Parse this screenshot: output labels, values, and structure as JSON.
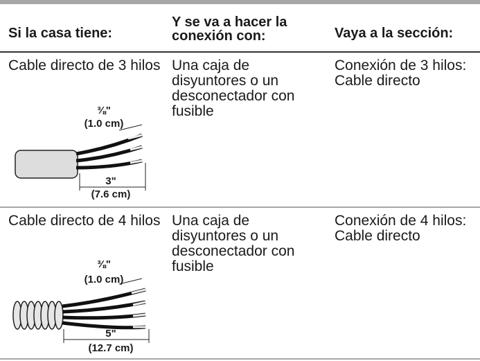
{
  "table": {
    "headers": [
      "Si la casa tiene:",
      "Y se va a hacer la conexión con:",
      "Vaya a la sección:"
    ],
    "rows": [
      {
        "cells": [
          "Cable directo de 3 hilos",
          "Una caja de disyuntores o un desconectador con fusible",
          "Conexión de 3 hilos: Cable directo"
        ],
        "diagram": {
          "strip_length": "⅜\"",
          "strip_metric": "(1.0 cm)",
          "length": "3\"",
          "length_metric": "(7.6 cm)"
        }
      },
      {
        "cells": [
          "Cable directo de 4 hilos",
          "Una caja de disyuntores o un desconectador con fusible",
          "Conexión de 4 hilos: Cable directo"
        ],
        "diagram": {
          "strip_length": "⅜\"",
          "strip_metric": "(1.0 cm)",
          "length": "5\"",
          "length_metric": "(12.7 cm)"
        }
      }
    ]
  }
}
